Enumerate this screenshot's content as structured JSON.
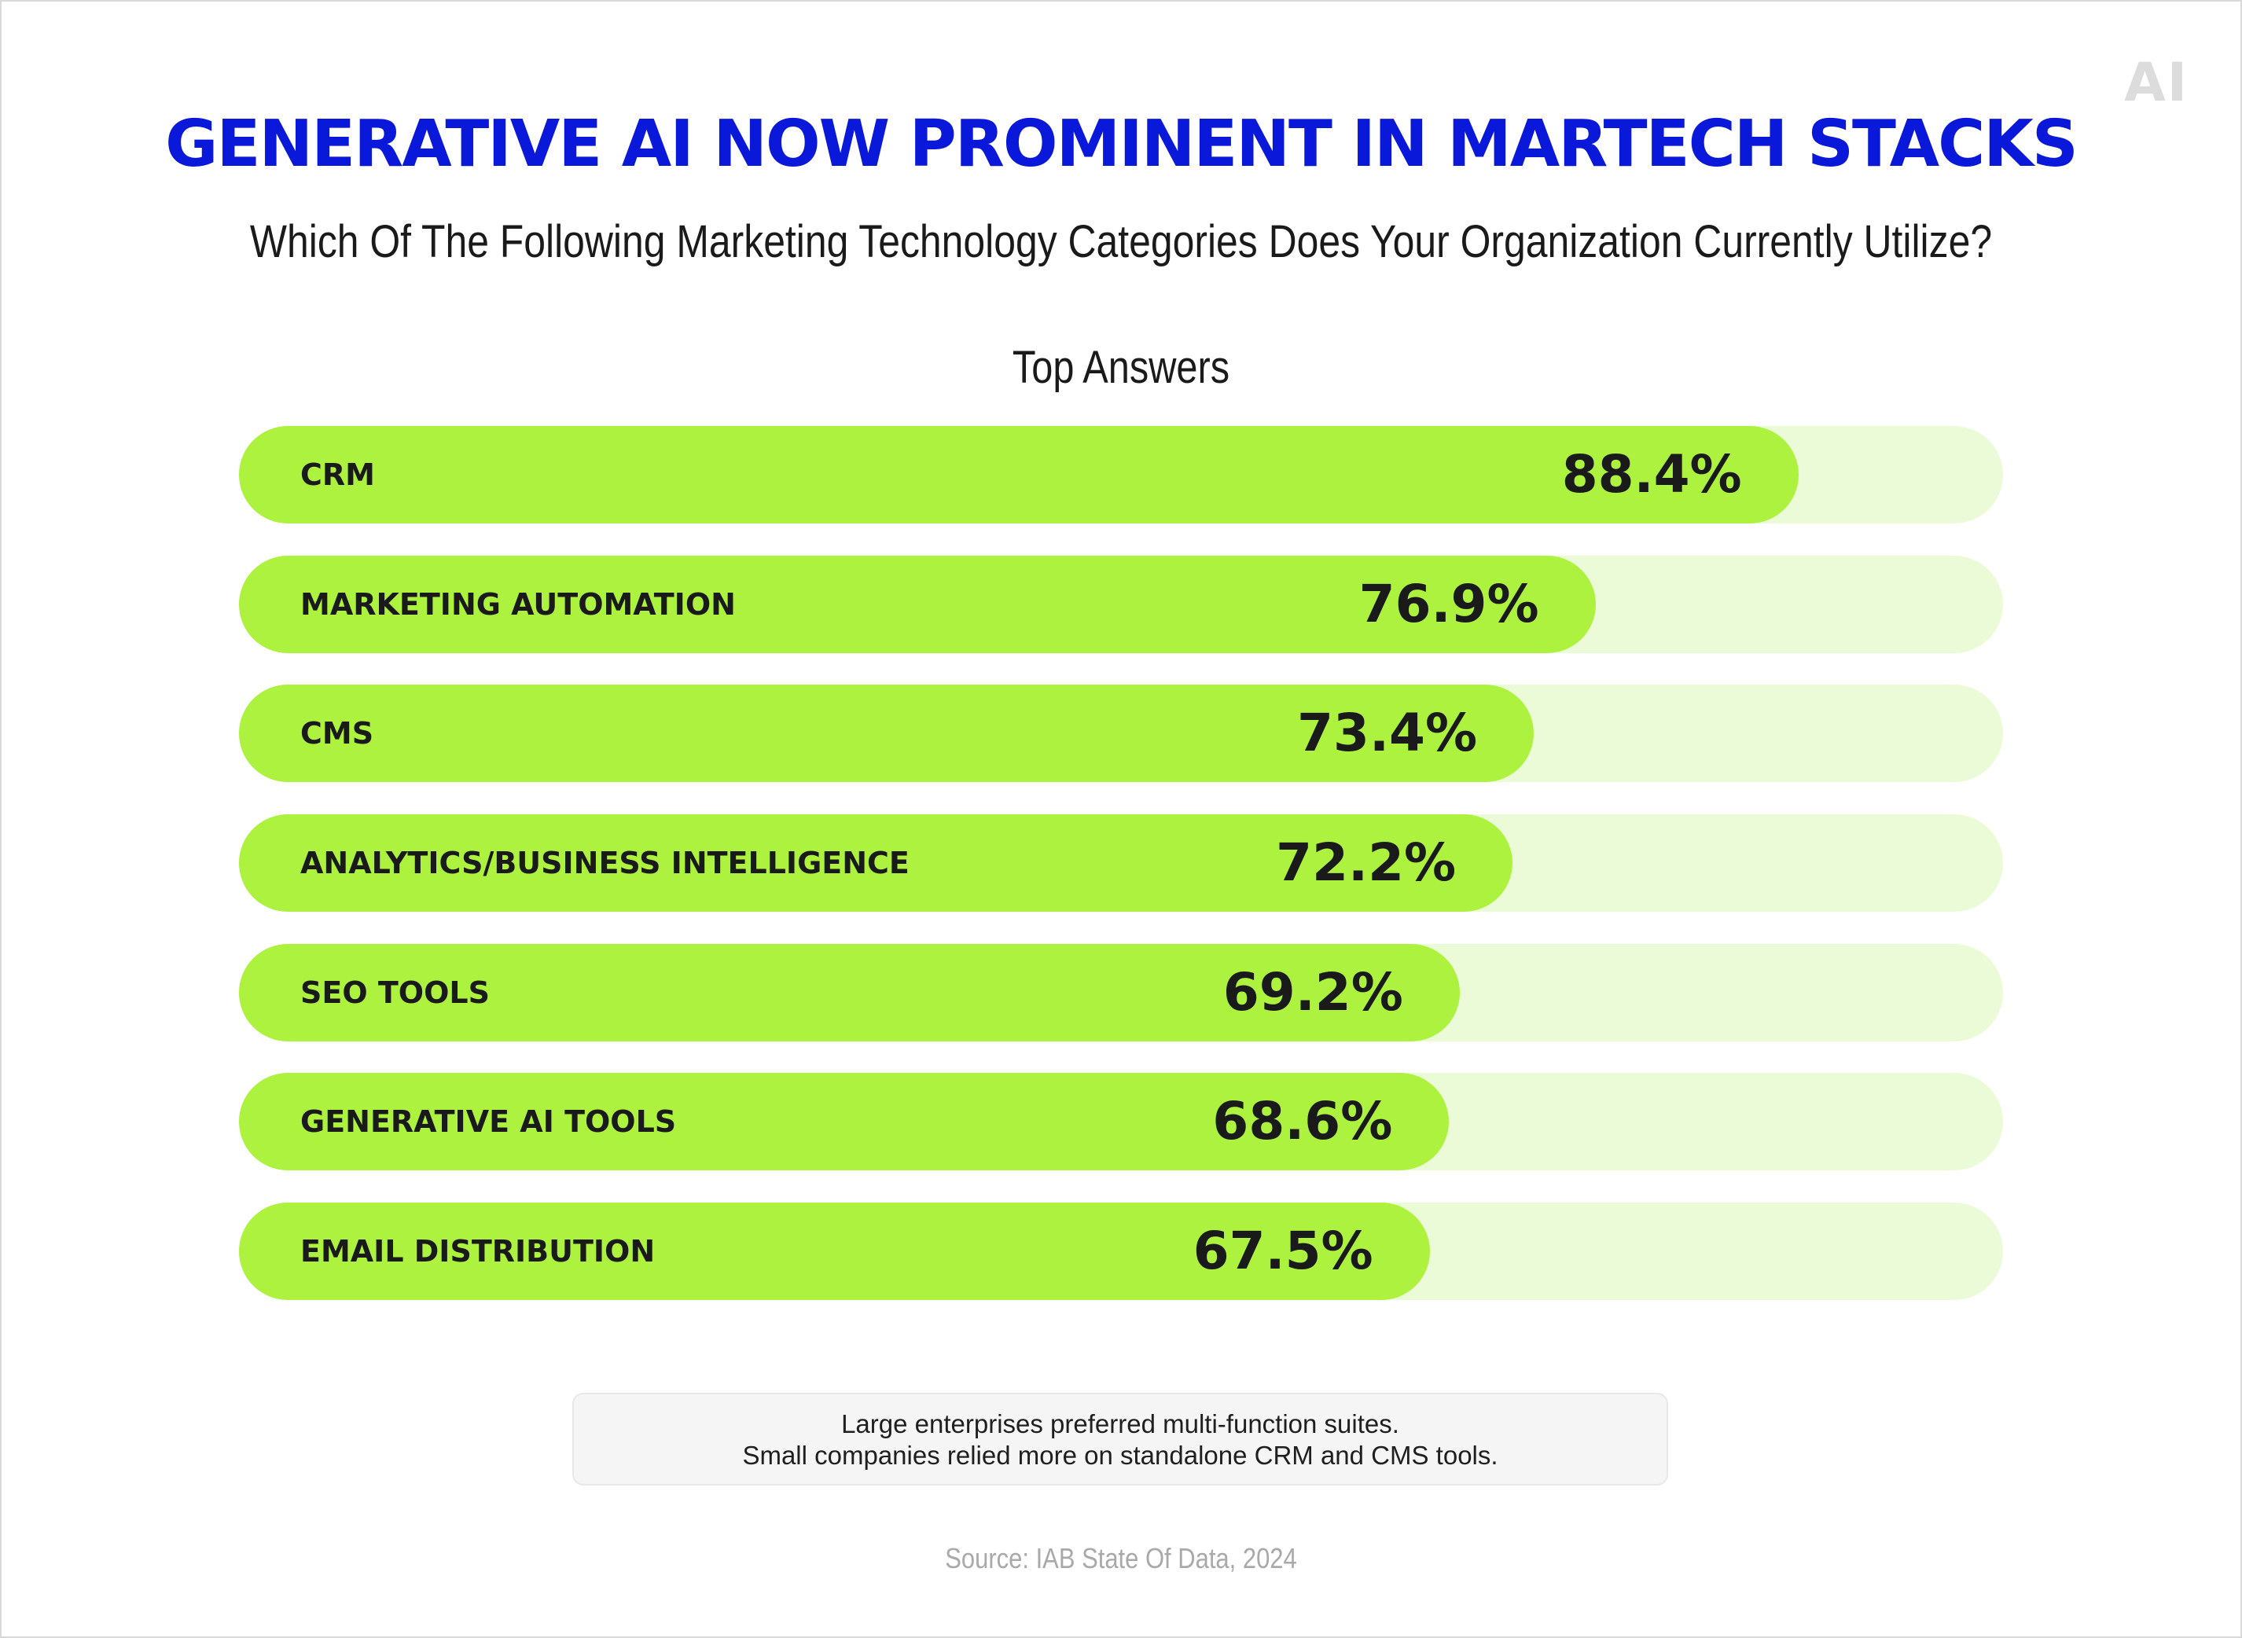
{
  "logo": "AI",
  "title": "GENERATIVE AI NOW PROMINENT IN MARTECH STACKS",
  "subtitle": "Which Of The Following Marketing Technology Categories Does Your Organization Currently Utilize?",
  "chart_data": {
    "type": "bar",
    "orientation": "horizontal",
    "title": "Top Answers",
    "categories": [
      "CRM",
      "MARKETING AUTOMATION",
      "CMS",
      "ANALYTICS/BUSINESS INTELLIGENCE",
      "SEO TOOLS",
      "GENERATIVE AI TOOLS",
      "EMAIL DISTRIBUTION"
    ],
    "values": [
      88.4,
      76.9,
      73.4,
      72.2,
      69.2,
      68.6,
      67.5
    ],
    "value_labels": [
      "88.4%",
      "76.9%",
      "73.4%",
      "72.2%",
      "69.2%",
      "68.6%",
      "67.5%"
    ],
    "unit": "%",
    "xlim": [
      0,
      100
    ],
    "colors": {
      "bar": "#adf23e",
      "track": "#ecfbd7",
      "title": "#0a18d9"
    }
  },
  "note": {
    "line1": "Large enterprises preferred multi-function suites.",
    "line2": "Small companies relied more on standalone CRM and CMS tools."
  },
  "source": "Source: IAB State Of Data, 2024"
}
